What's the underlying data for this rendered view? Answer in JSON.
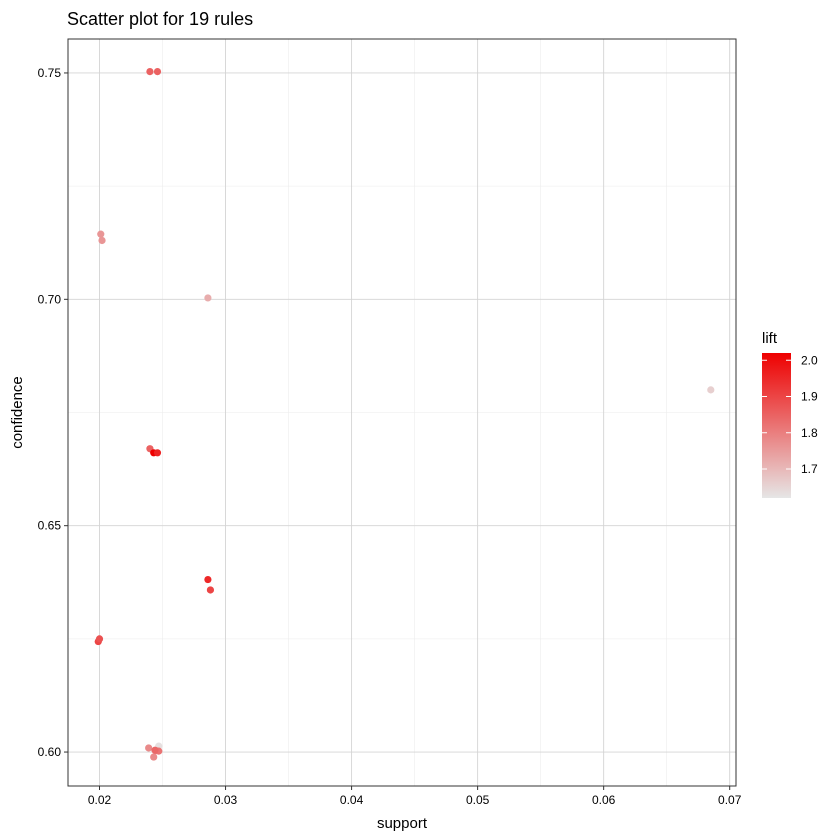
{
  "chart_data": {
    "type": "scatter",
    "title": "Scatter plot for 19 rules",
    "xlabel": "support",
    "ylabel": "confidence",
    "xlim": [
      0.0175,
      0.0705
    ],
    "ylim": [
      0.5925,
      0.7575
    ],
    "x_ticks": [
      0.02,
      0.03,
      0.04,
      0.05,
      0.06,
      0.07
    ],
    "x_tick_labels": [
      "0.02",
      "0.03",
      "0.04",
      "0.05",
      "0.06",
      "0.07"
    ],
    "y_ticks": [
      0.6,
      0.65,
      0.7,
      0.75
    ],
    "y_tick_labels": [
      "0.60",
      "0.65",
      "0.70",
      "0.75"
    ],
    "grid": true,
    "legend": {
      "title": "lift",
      "placement": "right",
      "min": 1.62,
      "max": 2.02,
      "ticks": [
        1.7,
        1.8,
        1.9,
        2.0
      ],
      "tick_labels": [
        "1.7",
        "1.8",
        "1.9",
        "2.0"
      ],
      "color_low": "#e6e6e6",
      "color_high": "#ee0000"
    },
    "points": [
      {
        "x": 0.024,
        "y": 0.7503,
        "lift": 1.85
      },
      {
        "x": 0.0246,
        "y": 0.7503,
        "lift": 1.85
      },
      {
        "x": 0.0201,
        "y": 0.7144,
        "lift": 1.76
      },
      {
        "x": 0.0202,
        "y": 0.713,
        "lift": 1.76
      },
      {
        "x": 0.0286,
        "y": 0.7003,
        "lift": 1.72
      },
      {
        "x": 0.0685,
        "y": 0.68,
        "lift": 1.66
      },
      {
        "x": 0.024,
        "y": 0.667,
        "lift": 1.85
      },
      {
        "x": 0.0243,
        "y": 0.6661,
        "lift": 2.02
      },
      {
        "x": 0.0246,
        "y": 0.6661,
        "lift": 1.96
      },
      {
        "x": 0.0286,
        "y": 0.6381,
        "lift": 1.95
      },
      {
        "x": 0.0288,
        "y": 0.6358,
        "lift": 1.9
      },
      {
        "x": 0.0199,
        "y": 0.6244,
        "lift": 1.9
      },
      {
        "x": 0.02,
        "y": 0.625,
        "lift": 1.88
      },
      {
        "x": 0.0239,
        "y": 0.6009,
        "lift": 1.78
      },
      {
        "x": 0.0247,
        "y": 0.6013,
        "lift": 1.63
      },
      {
        "x": 0.0245,
        "y": 0.6003,
        "lift": 1.8
      },
      {
        "x": 0.0247,
        "y": 0.6002,
        "lift": 1.82
      },
      {
        "x": 0.0243,
        "y": 0.5989,
        "lift": 1.78
      },
      {
        "x": 0.0244,
        "y": 0.6004,
        "lift": 1.84
      }
    ]
  }
}
